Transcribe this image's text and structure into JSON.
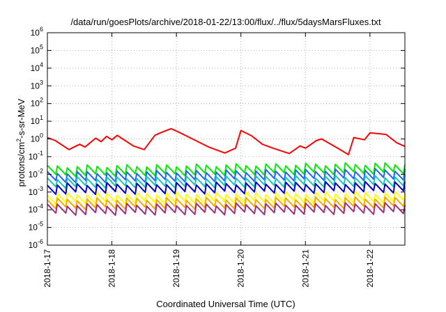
{
  "chart_data": {
    "type": "line",
    "title": "/data/run/goesPlots/archive/2018-01-22/13:00/flux/../flux/5daysMarsFluxes.txt",
    "xlabel": "Coordinated Universal Time (UTC)",
    "ylabel": {
      "pre": "protons/cm",
      "sup": "2",
      "post": "-s-sr-MeV"
    },
    "y_scale": "log",
    "ylim": [
      1e-06,
      1000000.0
    ],
    "y_ticks": [
      {
        "value": 1e-06,
        "base": "10",
        "exp": "-6"
      },
      {
        "value": 1e-05,
        "base": "10",
        "exp": "-5"
      },
      {
        "value": 0.0001,
        "base": "10",
        "exp": "-4"
      },
      {
        "value": 0.001,
        "base": "10",
        "exp": "-3"
      },
      {
        "value": 0.01,
        "base": "10",
        "exp": "-2"
      },
      {
        "value": 0.1,
        "base": "10",
        "exp": "-1"
      },
      {
        "value": 1,
        "base": "10",
        "exp": "0"
      },
      {
        "value": 10.0,
        "base": "10",
        "exp": "1"
      },
      {
        "value": 100.0,
        "base": "10",
        "exp": "2"
      },
      {
        "value": 1000.0,
        "base": "10",
        "exp": "3"
      },
      {
        "value": 10000.0,
        "base": "10",
        "exp": "4"
      },
      {
        "value": 100000.0,
        "base": "10",
        "exp": "5"
      },
      {
        "value": 1000000.0,
        "base": "10",
        "exp": "6"
      }
    ],
    "xlim": [
      "2018-01-17T00:00",
      "2018-01-22T13:00"
    ],
    "x_ticks": [
      {
        "value": "2018-01-17T00:00",
        "label": "2018-1-17"
      },
      {
        "value": "2018-01-18T00:00",
        "label": "2018-1-18"
      },
      {
        "value": "2018-01-19T00:00",
        "label": "2018-1-19"
      },
      {
        "value": "2018-01-20T00:00",
        "label": "2018-1-20"
      },
      {
        "value": "2018-01-21T00:00",
        "label": "2018-1-21"
      },
      {
        "value": "2018-01-22T00:00",
        "label": "2018-1-22"
      }
    ],
    "grid": true,
    "series": [
      {
        "color": "#ff0000",
        "x": [
          "2018-01-17T00:00",
          "2018-01-17T03:00",
          "2018-01-17T06:00",
          "2018-01-17T08:00",
          "2018-01-17T12:00",
          "2018-01-17T14:00",
          "2018-01-17T18:00",
          "2018-01-17T20:00",
          "2018-01-17T22:00",
          "2018-01-18T00:00",
          "2018-01-18T02:00",
          "2018-01-18T04:00",
          "2018-01-18T08:00",
          "2018-01-18T12:00",
          "2018-01-18T16:00",
          "2018-01-18T18:00",
          "2018-01-18T22:00",
          "2018-01-19T00:00",
          "2018-01-19T06:00",
          "2018-01-19T12:00",
          "2018-01-19T18:00",
          "2018-01-19T22:00",
          "2018-01-20T00:00",
          "2018-01-20T04:00",
          "2018-01-20T08:00",
          "2018-01-20T12:00",
          "2018-01-20T18:00",
          "2018-01-20T22:00",
          "2018-01-21T00:00",
          "2018-01-21T04:00",
          "2018-01-21T06:00",
          "2018-01-21T12:00",
          "2018-01-21T16:00",
          "2018-01-21T18:00",
          "2018-01-21T22:00",
          "2018-01-22T00:00",
          "2018-01-22T06:00",
          "2018-01-22T10:00",
          "2018-01-22T13:00"
        ],
        "y": [
          1.2,
          0.8,
          0.4,
          0.25,
          0.5,
          0.35,
          1.1,
          0.7,
          1.4,
          0.9,
          1.6,
          1.0,
          0.4,
          0.25,
          1.6,
          2.2,
          3.8,
          2.8,
          1.0,
          0.35,
          0.16,
          0.3,
          3.0,
          1.5,
          0.5,
          0.3,
          0.15,
          0.4,
          0.3,
          0.8,
          1.0,
          0.3,
          0.13,
          1.2,
          0.9,
          2.2,
          1.8,
          0.6,
          0.38
        ]
      },
      {
        "color": "#00ee00",
        "x": [
          "2018-01-17T00:00",
          "2018-01-22T13:00"
        ],
        "y": [
          0.018,
          0.026
        ]
      },
      {
        "color": "#1e64ff",
        "x": [
          "2018-01-17T00:00",
          "2018-01-22T13:00"
        ],
        "y": [
          0.008,
          0.012
        ]
      },
      {
        "color": "#18c8b4",
        "x": [
          "2018-01-17T00:00",
          "2018-01-22T13:00"
        ],
        "y": [
          0.004,
          0.005
        ]
      },
      {
        "color": "#0000cc",
        "x": [
          "2018-01-17T00:00",
          "2018-01-22T13:00"
        ],
        "y": [
          0.0018,
          0.0022
        ]
      },
      {
        "color": "#ffff00",
        "x": [
          "2018-01-17T00:00",
          "2018-01-22T13:00"
        ],
        "y": [
          0.0005,
          0.0006
        ]
      },
      {
        "color": "#ffa500",
        "x": [
          "2018-01-17T00:00",
          "2018-01-22T13:00"
        ],
        "y": [
          0.00025,
          0.0003
        ]
      },
      {
        "color": "#a03080",
        "x": [
          "2018-01-17T00:00",
          "2018-01-22T13:00"
        ],
        "y": [
          0.00012,
          0.00014
        ]
      }
    ]
  }
}
